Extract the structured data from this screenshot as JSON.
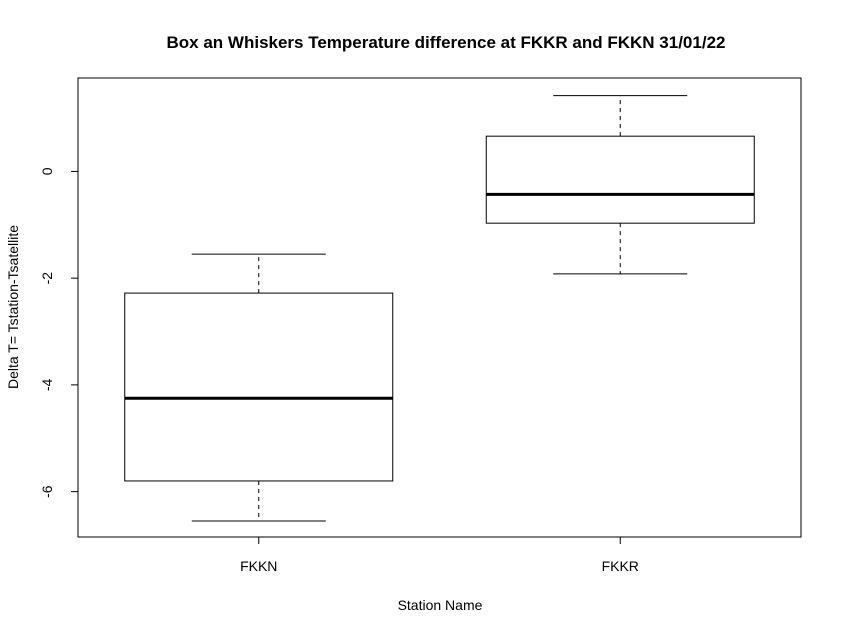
{
  "chart_data": {
    "type": "boxplot",
    "title": "Box an Whiskers Temperature difference at FKKR and FKKN 31/01/22",
    "xlabel": "Station Name",
    "ylabel": "Delta T= Tstation-Tsatellite",
    "categories": [
      "FKKN",
      "FKKR"
    ],
    "boxes": [
      {
        "category": "FKKN",
        "whisker_low": -6.55,
        "q1": -5.8,
        "median": -4.25,
        "q3": -2.28,
        "whisker_high": -1.55
      },
      {
        "category": "FKKR",
        "whisker_low": -1.92,
        "q1": -0.97,
        "median": -0.43,
        "q3": 0.66,
        "whisker_high": 1.42
      }
    ],
    "y_ticks": [
      "-6",
      "-4",
      "-2",
      "0"
    ],
    "ylim": [
      -6.85,
      1.75
    ],
    "grid": false,
    "legend": "none"
  }
}
